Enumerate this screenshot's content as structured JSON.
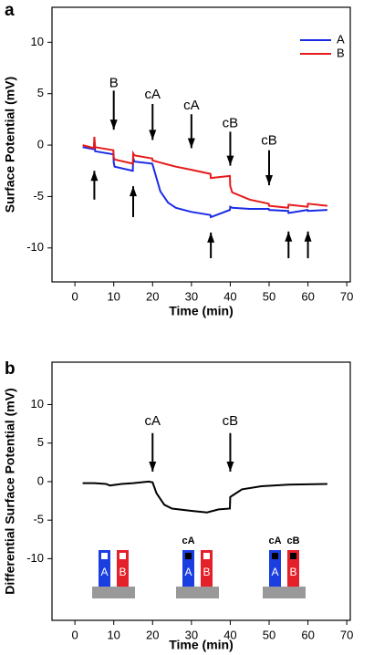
{
  "chart_data": [
    {
      "type": "line",
      "panel_label": "a",
      "x_label": "Time (min)",
      "y_label": "Surface Potential (mV)",
      "xlim": [
        -5.9,
        70.9
      ],
      "xticks": [
        0,
        10,
        20,
        30,
        40,
        50,
        60,
        70
      ],
      "ylim": [
        -13.3,
        13.4
      ],
      "yticks": [
        -10,
        -5,
        0,
        5,
        10
      ],
      "legend": "upper right",
      "x": [
        2,
        4.9,
        5,
        5.2,
        9.9,
        10,
        10.2,
        14.9,
        15,
        15.3,
        19.9,
        20,
        22,
        24,
        26,
        30,
        34.9,
        35,
        39.9,
        40,
        40.5,
        45,
        49.9,
        50,
        54.9,
        55,
        59.9,
        60,
        65
      ],
      "series": [
        {
          "name": "A",
          "color": "#1a2be6",
          "values": [
            -0.2,
            -0.4,
            0.3,
            -0.6,
            -0.9,
            -1.7,
            -2.1,
            -2.5,
            -1.2,
            -1.6,
            -1.8,
            -1.9,
            -4.5,
            -5.6,
            -6.1,
            -6.5,
            -6.8,
            -7.0,
            -6.3,
            -6.0,
            -6.1,
            -6.2,
            -6.2,
            -6.3,
            -6.4,
            -6.6,
            -6.3,
            -6.4,
            -6.3
          ]
        },
        {
          "name": "B",
          "color": "#e61a1a",
          "values": [
            0,
            -0.3,
            0.8,
            -0.2,
            -0.5,
            -1.2,
            -1.4,
            -1.8,
            -0.8,
            -1.0,
            -1.3,
            -1.5,
            -1.7,
            -1.9,
            -2.1,
            -2.4,
            -2.8,
            -3.2,
            -3.0,
            -4.0,
            -4.6,
            -5.3,
            -5.7,
            -5.9,
            -6.1,
            -5.8,
            -6.0,
            -5.7,
            -5.9
          ]
        }
      ],
      "annotations": [
        {
          "text": "B",
          "x": 10,
          "y": 6.0,
          "arrow": [
            5.3,
            1.5
          ]
        },
        {
          "text": "cA",
          "x": 20,
          "y": 4.9,
          "arrow": [
            4.0,
            0.5
          ]
        },
        {
          "text": "cA",
          "x": 30,
          "y": 3.8,
          "arrow": [
            3.0,
            -0.3
          ]
        },
        {
          "text": "cB",
          "x": 40,
          "y": 2.1,
          "arrow": [
            1.3,
            -2.0
          ]
        },
        {
          "text": "cB",
          "x": 50,
          "y": 0.4,
          "arrow": [
            -0.5,
            -3.9
          ]
        }
      ],
      "arrows": [
        {
          "x": 5,
          "arrow": [
            -5.3,
            -2.5
          ]
        },
        {
          "x": 15,
          "arrow": [
            -7.0,
            -4.0
          ]
        },
        {
          "x": 35,
          "arrow": [
            -11.0,
            -8.5
          ]
        },
        {
          "x": 55,
          "arrow": [
            -11.0,
            -8.4
          ]
        },
        {
          "x": 60,
          "arrow": [
            -11.0,
            -8.4
          ]
        }
      ]
    },
    {
      "type": "line",
      "panel_label": "b",
      "x_label": "Time (min)",
      "y_label": "Differential Surface Potential (mV)",
      "xlim": [
        -5.9,
        70.9
      ],
      "xticks": [
        0,
        10,
        20,
        30,
        40,
        50,
        60,
        70
      ],
      "ylim": [
        -18.0,
        15.5
      ],
      "yticks": [
        -10,
        -5,
        0,
        5,
        10
      ],
      "x": [
        2,
        5,
        8,
        9,
        12,
        15,
        19,
        20,
        21,
        23,
        25,
        30,
        34,
        37,
        39.9,
        40,
        43,
        48,
        55,
        65
      ],
      "series": [
        {
          "color": "#000000",
          "values": [
            -0.2,
            -0.2,
            -0.3,
            -0.5,
            -0.3,
            -0.2,
            0.0,
            -0.1,
            -1.5,
            -3.0,
            -3.5,
            -3.8,
            -4.0,
            -3.6,
            -3.5,
            -2.0,
            -1.0,
            -0.6,
            -0.4,
            -0.3
          ]
        }
      ],
      "annotations": [
        {
          "text": "cA",
          "x": 20,
          "y": 7.8,
          "arrow": [
            6.3,
            1.3
          ]
        },
        {
          "text": "cB",
          "x": 40,
          "y": 7.8,
          "arrow": [
            6.3,
            1.3
          ]
        }
      ],
      "insets": [
        {
          "boxes": [
            {
              "text": "A",
              "color": "#1a3ee0",
              "filled": false
            },
            {
              "text": "B",
              "color": "#e4202a",
              "filled": false
            }
          ]
        },
        {
          "boxes": [
            {
              "label": "cA",
              "text": "A",
              "color": "#1a3ee0",
              "filled": true
            },
            {
              "text": "B",
              "color": "#e4202a",
              "filled": false
            }
          ]
        },
        {
          "boxes": [
            {
              "label": "cA",
              "text": "A",
              "color": "#1a3ee0",
              "filled": true
            },
            {
              "label": "cB",
              "text": "B",
              "color": "#e4202a",
              "filled": true
            }
          ]
        }
      ]
    }
  ]
}
